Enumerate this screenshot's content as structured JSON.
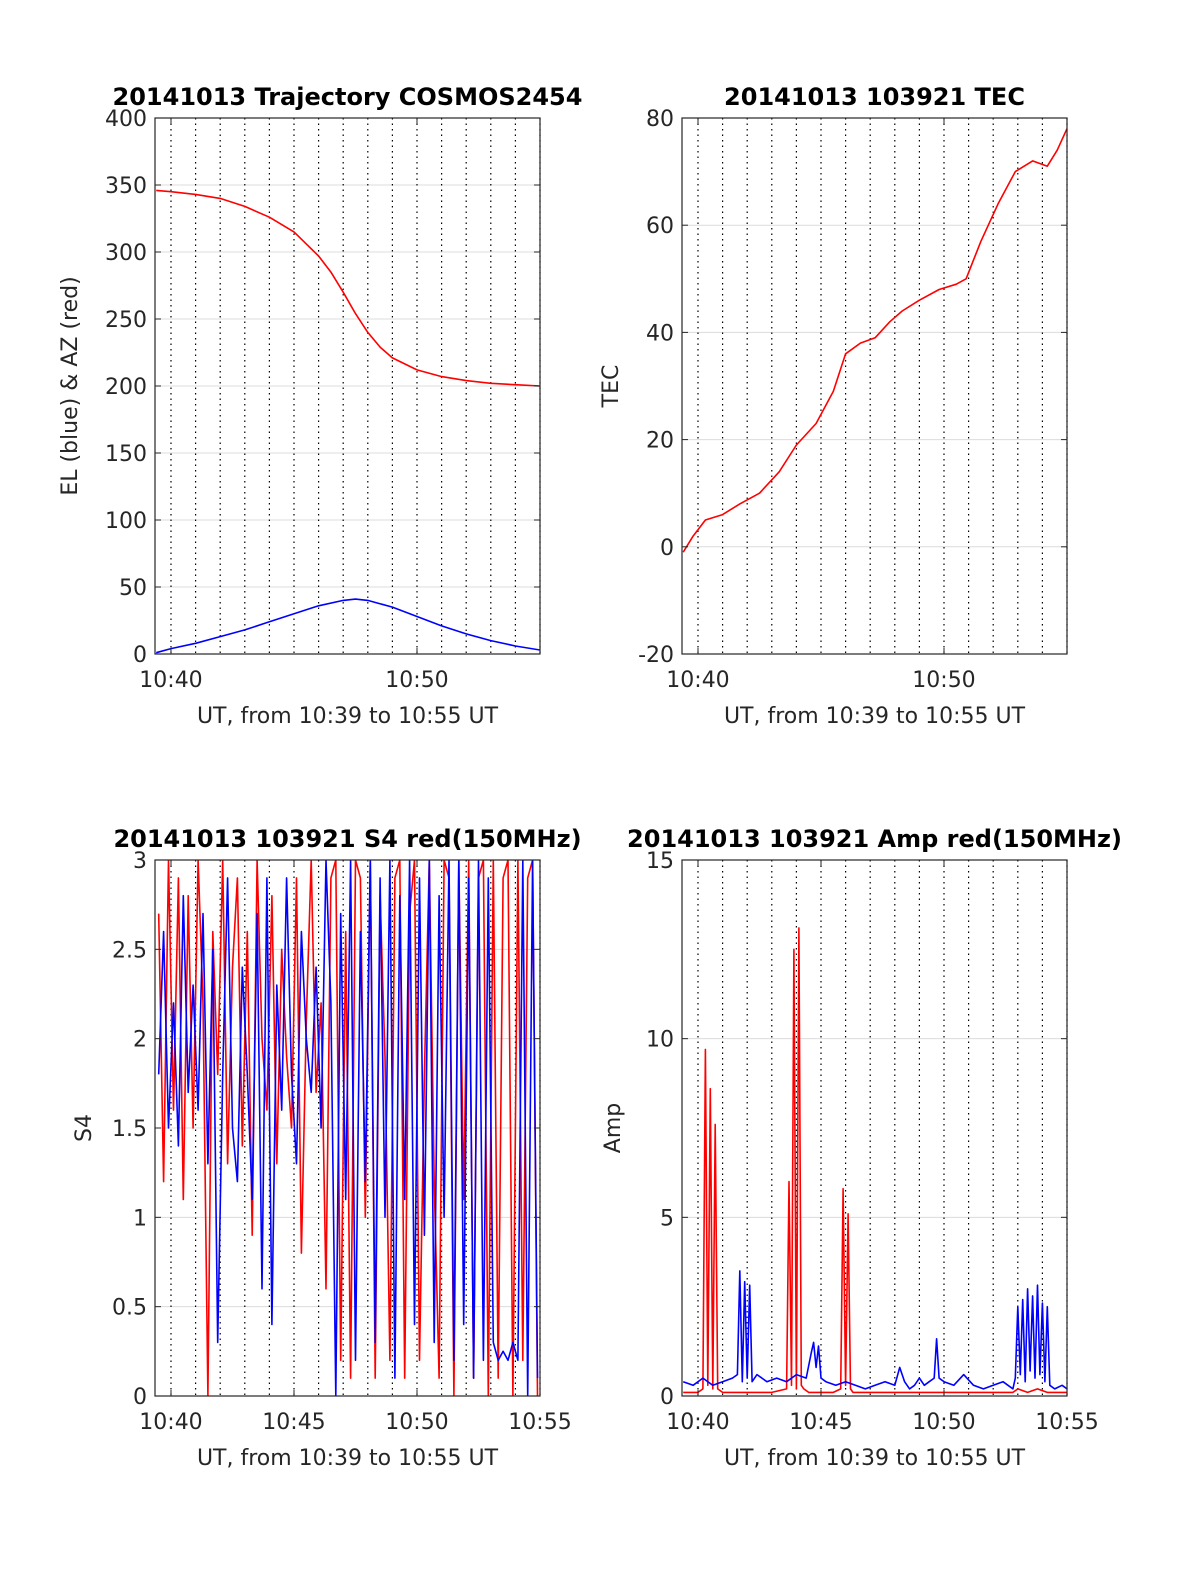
{
  "chart_data": [
    {
      "type": "line",
      "title": "20141013 Trajectory COSMOS2454",
      "xlabel": "UT, from 10:39 to 10:55 UT",
      "ylabel": "EL (blue) & AZ (red)",
      "x_unit": "minutes of hour 10",
      "xlim": [
        39.35,
        55.0
      ],
      "ylim": [
        0,
        400
      ],
      "xticks": [
        40,
        50
      ],
      "xtick_labels": [
        "10:40",
        "10:50"
      ],
      "yticks": [
        0,
        50,
        100,
        150,
        200,
        250,
        300,
        350,
        400
      ],
      "ytick_labels": [
        "0",
        "50",
        "100",
        "150",
        "200",
        "250",
        "300",
        "350",
        "400"
      ],
      "grid": "horizontal solid at y ticks, vertical dotted every minute",
      "series": [
        {
          "color": "#ff0000",
          "x": [
            39.4,
            40,
            41,
            42,
            43,
            44,
            45,
            46,
            46.5,
            47,
            47.5,
            48,
            48.5,
            49,
            50,
            51,
            52,
            53,
            54,
            55
          ],
          "values": [
            346,
            345,
            343,
            340,
            334,
            326,
            315,
            297,
            285,
            270,
            254,
            240,
            229,
            221,
            212,
            207,
            204,
            202,
            201,
            200
          ]
        },
        {
          "color": "#0000ff",
          "x": [
            39.4,
            40,
            41,
            42,
            43,
            44,
            45,
            46,
            47,
            47.5,
            48,
            49,
            50,
            51,
            52,
            53,
            54,
            55
          ],
          "values": [
            1,
            4,
            8,
            13,
            18,
            24,
            30,
            36,
            40,
            41,
            40,
            35,
            28,
            21,
            15,
            10,
            6,
            3
          ]
        }
      ]
    },
    {
      "type": "line",
      "title": "20141013 103921 TEC",
      "xlabel": "UT, from 10:39 to 10:55 UT",
      "ylabel": "TEC",
      "x_unit": "minutes of hour 10",
      "xlim": [
        39.35,
        55.0
      ],
      "ylim": [
        -20,
        80
      ],
      "xticks": [
        40,
        50
      ],
      "xtick_labels": [
        "10:40",
        "10:50"
      ],
      "yticks": [
        -20,
        0,
        20,
        40,
        60,
        80
      ],
      "ytick_labels": [
        "-20",
        "0",
        "20",
        "40",
        "60",
        "80"
      ],
      "grid": "horizontal solid at y ticks, vertical dotted every minute",
      "series": [
        {
          "color": "#ff0000",
          "x": [
            39.4,
            39.8,
            40.3,
            41,
            41.7,
            42.5,
            43.3,
            44,
            44.8,
            45.5,
            46,
            46.6,
            47.2,
            47.8,
            48.3,
            49,
            49.8,
            50.5,
            50.9,
            51.5,
            52.2,
            52.9,
            53.6,
            54.2,
            54.6,
            55
          ],
          "values": [
            -1,
            2,
            5,
            6,
            8,
            10,
            14,
            19,
            23,
            29,
            36,
            38,
            39,
            42,
            44,
            46,
            48,
            49,
            50,
            57,
            64,
            70,
            72,
            71,
            74,
            78
          ]
        }
      ]
    },
    {
      "type": "line",
      "title": "20141013 103921 S4 red(150MHz)",
      "xlabel": "UT, from 10:39 to 10:55 UT",
      "ylabel": "S4",
      "x_unit": "minutes of hour 10",
      "xlim": [
        39.35,
        55.0
      ],
      "ylim": [
        0,
        3
      ],
      "xticks": [
        40,
        45,
        50,
        55
      ],
      "xtick_labels": [
        "10:40",
        "10:45",
        "10:50",
        "10:55"
      ],
      "yticks": [
        0,
        0.5,
        1,
        1.5,
        2,
        2.5,
        3
      ],
      "ytick_labels": [
        "0",
        "0.5",
        "1",
        "1.5",
        "2",
        "2.5",
        "3"
      ],
      "grid": "horizontal solid at y ticks, vertical dotted every minute",
      "series": [
        {
          "color": "#ff0000",
          "x": [
            39.5,
            39.7,
            39.9,
            40.1,
            40.3,
            40.5,
            40.7,
            40.9,
            41.1,
            41.3,
            41.5,
            41.7,
            41.9,
            42.1,
            42.3,
            42.5,
            42.7,
            42.9,
            43.1,
            43.3,
            43.5,
            43.7,
            43.9,
            44.1,
            44.3,
            44.5,
            44.7,
            44.9,
            45.1,
            45.3,
            45.5,
            45.7,
            45.9,
            46.1,
            46.3,
            46.5,
            46.7,
            46.9,
            47.1,
            47.3,
            47.5,
            47.7,
            47.9,
            48.1,
            48.3,
            48.5,
            48.7,
            48.9,
            49.1,
            49.3,
            49.5,
            49.7,
            49.9,
            50.1,
            50.3,
            50.5,
            50.7,
            50.9,
            51.1,
            51.3,
            51.5,
            51.7,
            51.9,
            52.1,
            52.3,
            52.5,
            52.7,
            52.9,
            53.1,
            53.3,
            53.5,
            53.7,
            53.9,
            54.1,
            54.3,
            54.5,
            54.7,
            54.9
          ],
          "values": [
            2.7,
            1.2,
            3.0,
            1.6,
            2.9,
            1.1,
            2.8,
            1.5,
            3.0,
            2.2,
            0.0,
            2.6,
            1.8,
            3.0,
            1.3,
            2.4,
            2.9,
            1.4,
            2.6,
            0.9,
            3.0,
            2.0,
            1.6,
            2.8,
            1.3,
            2.5,
            1.9,
            1.5,
            2.9,
            0.8,
            2.1,
            3.0,
            1.7,
            2.2,
            0.6,
            2.9,
            3.0,
            0.2,
            2.6,
            0.1,
            3.0,
            2.9,
            1.0,
            3.0,
            0.1,
            2.8,
            1.9,
            0.2,
            2.9,
            3.0,
            0.1,
            2.7,
            3.0,
            0.2,
            1.8,
            3.0,
            1.2,
            0.1,
            3.0,
            2.9,
            0.0,
            3.0,
            1.1,
            3.0,
            0.1,
            2.9,
            3.0,
            0.0,
            3.0,
            0.1,
            2.9,
            3.0,
            0.0,
            3.0,
            0.2,
            2.9,
            3.0,
            0.0
          ]
        },
        {
          "color": "#0000ff",
          "x": [
            39.5,
            39.7,
            39.9,
            40.1,
            40.3,
            40.5,
            40.7,
            40.9,
            41.1,
            41.3,
            41.5,
            41.7,
            41.9,
            42.1,
            42.3,
            42.5,
            42.7,
            42.9,
            43.1,
            43.3,
            43.5,
            43.7,
            43.9,
            44.1,
            44.3,
            44.5,
            44.7,
            44.9,
            45.1,
            45.3,
            45.5,
            45.7,
            45.9,
            46.1,
            46.3,
            46.5,
            46.7,
            46.9,
            47.1,
            47.3,
            47.5,
            47.7,
            47.9,
            48.1,
            48.3,
            48.5,
            48.7,
            48.9,
            49.1,
            49.3,
            49.5,
            49.7,
            49.9,
            50.1,
            50.3,
            50.5,
            50.7,
            50.9,
            51.1,
            51.3,
            51.5,
            51.7,
            51.9,
            52.1,
            52.3,
            52.5,
            52.7,
            52.9,
            53.1,
            53.3,
            53.5,
            53.7,
            53.9,
            54.1,
            54.3,
            54.5,
            54.7,
            54.9
          ],
          "values": [
            1.8,
            2.6,
            1.5,
            2.2,
            1.4,
            2.8,
            1.7,
            2.3,
            1.6,
            2.7,
            1.3,
            2.5,
            0.3,
            1.8,
            2.9,
            1.5,
            1.2,
            2.4,
            1.8,
            1.1,
            2.7,
            0.6,
            2.9,
            0.4,
            2.3,
            1.6,
            2.9,
            1.8,
            1.3,
            2.6,
            2.0,
            1.7,
            2.4,
            1.5,
            3.0,
            2.2,
            0.0,
            2.7,
            1.1,
            3.0,
            0.2,
            2.6,
            1.2,
            3.0,
            0.3,
            2.9,
            1.0,
            3.0,
            0.1,
            2.8,
            1.1,
            3.0,
            0.4,
            2.9,
            0.9,
            3.0,
            0.3,
            2.8,
            1.0,
            3.0,
            0.2,
            3.0,
            0.4,
            2.9,
            0.1,
            3.0,
            0.2,
            2.9,
            0.3,
            0.2,
            0.25,
            0.2,
            0.3,
            0.2,
            3.0,
            0.0,
            3.0,
            0.1
          ]
        }
      ]
    },
    {
      "type": "line",
      "title": "20141013 103921 Amp red(150MHz)",
      "xlabel": "UT, from 10:39 to 10:55 UT",
      "ylabel": "Amp",
      "x_unit": "minutes of hour 10",
      "xlim": [
        39.35,
        55.0
      ],
      "ylim": [
        0,
        15
      ],
      "xticks": [
        40,
        45,
        50,
        55
      ],
      "xtick_labels": [
        "10:40",
        "10:45",
        "10:50",
        "10:55"
      ],
      "yticks": [
        0,
        5,
        10,
        15
      ],
      "ytick_labels": [
        "0",
        "5",
        "10",
        "15"
      ],
      "grid": "horizontal solid at y ticks, vertical dotted every minute",
      "series": [
        {
          "color": "#ff0000",
          "x": [
            39.4,
            40.0,
            40.2,
            40.3,
            40.4,
            40.5,
            40.6,
            40.7,
            40.8,
            41.0,
            43.0,
            43.6,
            43.7,
            43.8,
            43.9,
            44.0,
            44.1,
            44.2,
            44.3,
            44.5,
            45.5,
            45.8,
            45.9,
            46.0,
            46.1,
            46.2,
            46.3,
            46.5,
            52.8,
            53.0,
            53.4,
            53.8,
            54.2,
            55.0
          ],
          "values": [
            0.1,
            0.1,
            0.2,
            9.7,
            0.3,
            8.6,
            0.2,
            7.6,
            0.2,
            0.1,
            0.1,
            0.2,
            6.0,
            0.3,
            12.5,
            0.2,
            13.1,
            0.3,
            0.2,
            0.1,
            0.1,
            0.2,
            5.8,
            0.3,
            5.1,
            0.2,
            0.1,
            0.1,
            0.1,
            0.2,
            0.1,
            0.2,
            0.1,
            0.1
          ]
        },
        {
          "color": "#0000ff",
          "x": [
            39.4,
            39.8,
            40.2,
            40.6,
            41.0,
            41.4,
            41.6,
            41.7,
            41.8,
            41.9,
            42.0,
            42.1,
            42.2,
            42.4,
            42.8,
            43.2,
            43.6,
            44.0,
            44.4,
            44.6,
            44.7,
            44.8,
            44.9,
            45.0,
            45.2,
            45.6,
            46.0,
            46.4,
            46.8,
            47.2,
            47.6,
            48.0,
            48.2,
            48.4,
            48.6,
            48.8,
            49.0,
            49.2,
            49.4,
            49.6,
            49.7,
            49.8,
            50.0,
            50.4,
            50.8,
            51.2,
            51.6,
            52.0,
            52.4,
            52.6,
            52.8,
            52.9,
            53.0,
            53.1,
            53.2,
            53.3,
            53.4,
            53.5,
            53.6,
            53.7,
            53.8,
            53.9,
            54.0,
            54.1,
            54.2,
            54.3,
            54.5,
            54.8,
            55.0
          ],
          "values": [
            0.4,
            0.3,
            0.5,
            0.3,
            0.4,
            0.5,
            0.6,
            3.5,
            0.4,
            3.2,
            0.5,
            3.1,
            0.4,
            0.6,
            0.4,
            0.5,
            0.4,
            0.6,
            0.5,
            1.2,
            1.5,
            0.8,
            1.4,
            0.5,
            0.4,
            0.3,
            0.4,
            0.3,
            0.2,
            0.3,
            0.4,
            0.3,
            0.8,
            0.4,
            0.2,
            0.3,
            0.5,
            0.3,
            0.4,
            0.5,
            1.6,
            0.5,
            0.4,
            0.3,
            0.6,
            0.3,
            0.2,
            0.3,
            0.4,
            0.3,
            0.2,
            0.5,
            2.5,
            0.6,
            2.7,
            0.4,
            3.0,
            0.7,
            2.8,
            0.5,
            3.1,
            0.6,
            2.6,
            0.4,
            2.5,
            0.3,
            0.2,
            0.3,
            0.2
          ]
        }
      ]
    }
  ]
}
